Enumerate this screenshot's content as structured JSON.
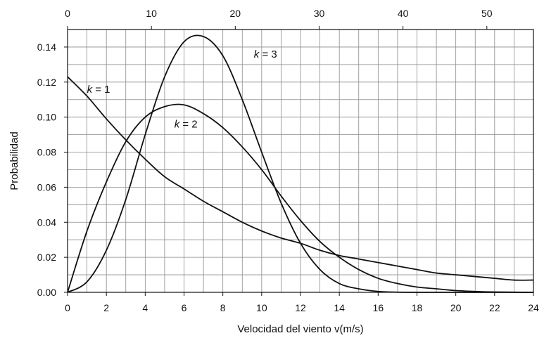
{
  "chart_data": {
    "type": "line",
    "title": "",
    "xlabel": "Velocidad del viento v(m/s)",
    "ylabel": "Probabilidad",
    "xlim": [
      0,
      24
    ],
    "ylim": [
      0,
      0.15
    ],
    "x_ticks": [
      "0",
      "2",
      "4",
      "6",
      "8",
      "10",
      "12",
      "14",
      "16",
      "18",
      "20",
      "22",
      "24"
    ],
    "y_ticks": [
      "0.00",
      "0.02",
      "0.04",
      "0.06",
      "0.08",
      "0.10",
      "0.12",
      "0.14"
    ],
    "secondary_x_ticks": [
      "0",
      "10",
      "20",
      "30",
      "40",
      "50"
    ],
    "grid": true,
    "series": [
      {
        "name": "k = 1",
        "x": [
          0,
          1,
          2,
          3,
          4,
          5,
          6,
          7,
          8,
          9,
          10,
          11,
          12,
          13,
          14,
          15,
          16,
          17,
          18,
          19,
          20,
          21,
          22,
          23,
          24
        ],
        "values": [
          0.123,
          0.112,
          0.099,
          0.087,
          0.076,
          0.066,
          0.059,
          0.052,
          0.046,
          0.04,
          0.035,
          0.031,
          0.028,
          0.024,
          0.021,
          0.019,
          0.017,
          0.015,
          0.013,
          0.011,
          0.01,
          0.009,
          0.008,
          0.007,
          0.007
        ]
      },
      {
        "name": "k = 2",
        "x": [
          0,
          1,
          2,
          3,
          4,
          5,
          6,
          7,
          8,
          9,
          10,
          11,
          12,
          13,
          14,
          15,
          16,
          17,
          18,
          19,
          20,
          21,
          22,
          23,
          24
        ],
        "values": [
          0.0,
          0.035,
          0.063,
          0.086,
          0.1,
          0.106,
          0.107,
          0.102,
          0.094,
          0.083,
          0.07,
          0.055,
          0.041,
          0.029,
          0.02,
          0.013,
          0.008,
          0.005,
          0.003,
          0.002,
          0.001,
          0.0005,
          0.0002,
          0.0001,
          0.0
        ]
      },
      {
        "name": "k = 3",
        "x": [
          0,
          1,
          2,
          3,
          4,
          5,
          6,
          7,
          8,
          9,
          10,
          11,
          12,
          13,
          14,
          15,
          16,
          17,
          18,
          19,
          20,
          21,
          22,
          23,
          24
        ],
        "values": [
          0.0,
          0.006,
          0.024,
          0.053,
          0.09,
          0.123,
          0.143,
          0.146,
          0.135,
          0.11,
          0.08,
          0.051,
          0.028,
          0.013,
          0.005,
          0.002,
          0.0005,
          0.0001,
          0.0,
          0.0,
          0.0,
          0.0,
          0.0,
          0.0,
          0.0
        ]
      }
    ],
    "annotations": [
      {
        "k": "k",
        "rest": " = 1",
        "x": 1.0,
        "y": 0.114
      },
      {
        "k": "k",
        "rest": " = 2",
        "x": 5.5,
        "y": 0.094
      },
      {
        "k": "k",
        "rest": " = 3",
        "x": 9.6,
        "y": 0.134
      }
    ]
  }
}
